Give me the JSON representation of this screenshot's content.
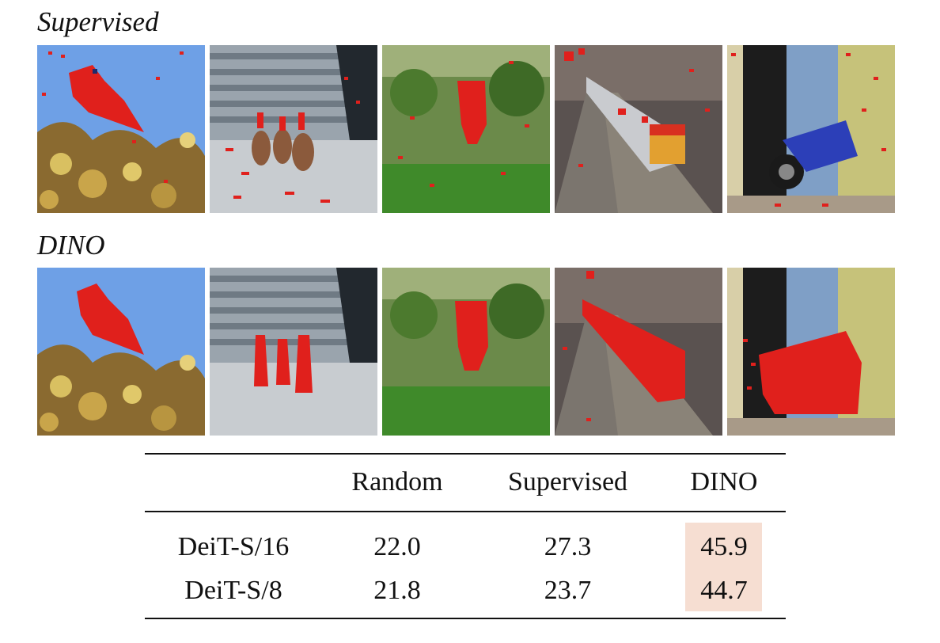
{
  "sections": {
    "supervised_label": "Supervised",
    "dino_label": "DINO"
  },
  "images": [
    "bird",
    "ducks",
    "elephant",
    "train",
    "motorcycle"
  ],
  "table": {
    "columns": [
      "",
      "Random",
      "Supervised",
      "DINO"
    ],
    "rows": [
      {
        "model": "DeiT-S/16",
        "random": "22.0",
        "supervised": "27.3",
        "dino": "45.9"
      },
      {
        "model": "DeiT-S/8",
        "random": "21.8",
        "supervised": "23.7",
        "dino": "44.7"
      }
    ],
    "highlight_color": "#f6ded2"
  },
  "colors": {
    "mask": "#e0201c",
    "sky": "#6ea0e6",
    "foliage": "#4c7a2e"
  }
}
